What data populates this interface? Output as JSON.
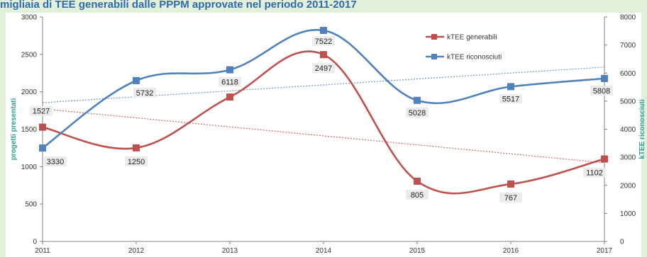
{
  "title": "migliaia di TEE generabili dalle PPPM approvate nel periodo 2011-2017",
  "chart_data": {
    "type": "line",
    "x": [
      "2011",
      "2012",
      "2013",
      "2014",
      "2015",
      "2016",
      "2017"
    ],
    "ylabel_left": "progetti presentati",
    "ylabel_right": "kTEE riconosciuti",
    "ylim_left": [
      0,
      3000
    ],
    "ylim_right": [
      0,
      8000
    ],
    "yticks_left": [
      "0",
      "500",
      "1000",
      "1500",
      "2000",
      "2500",
      "3000"
    ],
    "yticks_right": [
      "0",
      "1000",
      "2000",
      "3000",
      "4000",
      "5000",
      "6000",
      "7000",
      "8000"
    ],
    "legend_position": "top-right",
    "series": [
      {
        "name": "kTEE generabili",
        "axis": "left",
        "color": "#c0504d",
        "values": [
          1527,
          1250,
          1930,
          2497,
          805,
          767,
          1102
        ],
        "labels": [
          "1527",
          "1250",
          "",
          "2497",
          "805",
          "767",
          "1102"
        ],
        "trendline": true
      },
      {
        "name": "kTEE riconosciuti",
        "axis": "right",
        "color": "#4f81bd",
        "values": [
          3330,
          5732,
          6118,
          7522,
          5028,
          5517,
          5808
        ],
        "labels": [
          "3330",
          "5732",
          "6118",
          "7522",
          "5028",
          "5517",
          "5808"
        ],
        "trendline": true
      }
    ]
  }
}
